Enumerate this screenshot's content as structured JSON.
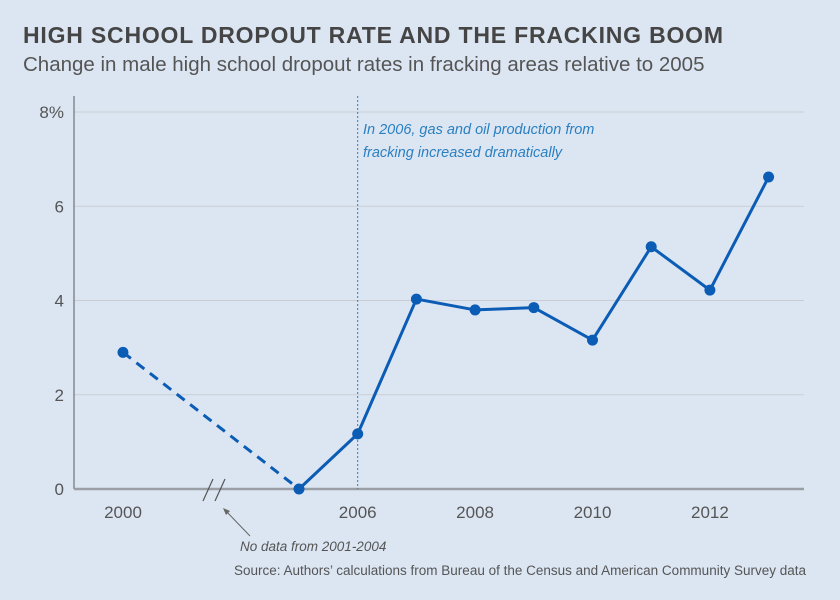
{
  "chart_data": {
    "type": "line",
    "title": "HIGH SCHOOL DROPOUT RATE AND THE FRACKING BOOM",
    "subtitle": "Change in male high school dropout rates in fracking areas relative to 2005",
    "xlabel": "",
    "ylabel": "",
    "ylim": [
      0,
      8
    ],
    "y_ticks": [
      {
        "value": 0,
        "label": "0"
      },
      {
        "value": 2,
        "label": "2"
      },
      {
        "value": 4,
        "label": "4"
      },
      {
        "value": 6,
        "label": "6"
      },
      {
        "value": 8,
        "label": "8%"
      }
    ],
    "x_ticks": [
      {
        "value": 2000,
        "label": "2000"
      },
      {
        "value": 2006,
        "label": "2006"
      },
      {
        "value": 2008,
        "label": "2008"
      },
      {
        "value": 2010,
        "label": "2010"
      },
      {
        "value": 2012,
        "label": "2012"
      }
    ],
    "grid": true,
    "axis_break": "between 2000 and 2005",
    "series": [
      {
        "name": "Male high school dropout rate change",
        "color": "#0b5cb5",
        "points": [
          {
            "x": 2000,
            "y": 2.9
          },
          {
            "x": 2005,
            "y": 0.0
          },
          {
            "x": 2006,
            "y": 1.17
          },
          {
            "x": 2007,
            "y": 4.03
          },
          {
            "x": 2008,
            "y": 3.8
          },
          {
            "x": 2009,
            "y": 3.85
          },
          {
            "x": 2010,
            "y": 3.16
          },
          {
            "x": 2011,
            "y": 5.14
          },
          {
            "x": 2012,
            "y": 4.22
          },
          {
            "x": 2013,
            "y": 6.62
          }
        ],
        "dashed_segment": [
          2000,
          2005
        ]
      }
    ],
    "reference_line": {
      "x": 2006,
      "style": "dotted"
    },
    "annotations": {
      "event_line1": "In 2006, gas and oil production from",
      "event_line2": "fracking increased dramatically",
      "no_data": "No data from 2001-2004"
    },
    "source": "Source: Authors’ calculations from Bureau of the Census and American Community Survey data"
  },
  "colors": {
    "background": "#dce6f3",
    "line": "#0b5cb5",
    "annotation": "#2a7fc0",
    "grid": "#c9cdd3",
    "axis": "#9a9ea5"
  }
}
